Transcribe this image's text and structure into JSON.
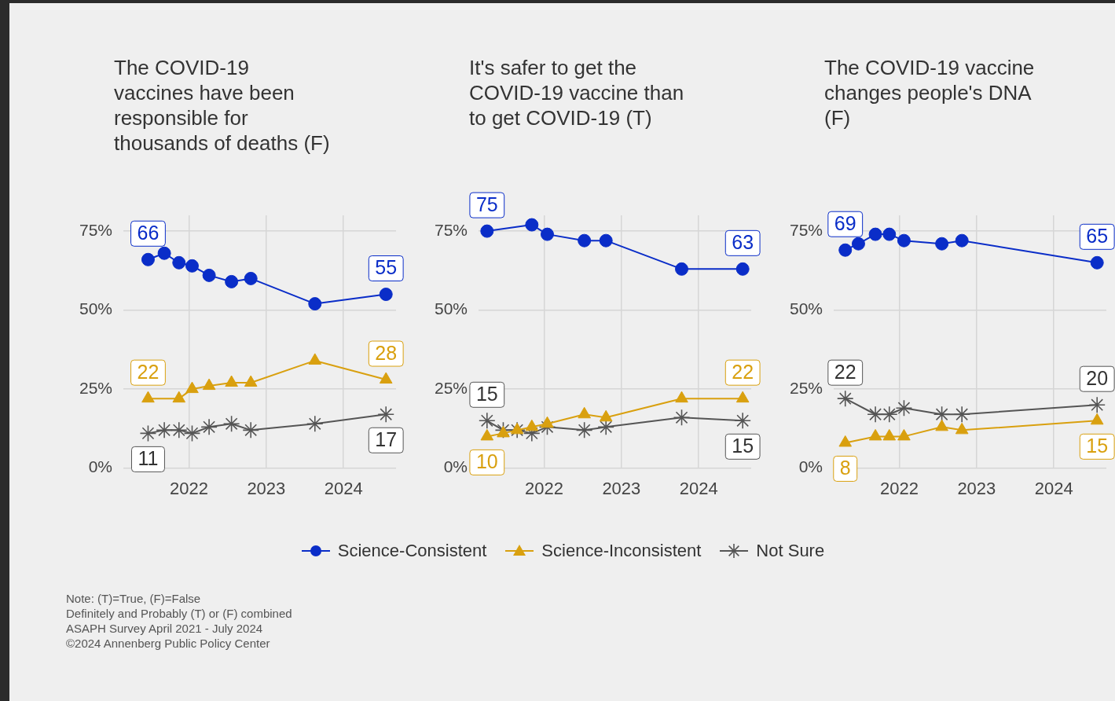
{
  "chart_data": [
    {
      "type": "line",
      "title": "The COVID-19 vaccines have been responsible for thousands of deaths (F)",
      "x": [
        2021.47,
        2021.68,
        2021.87,
        2022.04,
        2022.26,
        2022.55,
        2022.8,
        2023.63,
        2024.55
      ],
      "xlim": [
        2021.15,
        2024.68
      ],
      "xticks": [
        2022,
        2023,
        2024
      ],
      "ylim": [
        0,
        80
      ],
      "yticks": [
        {
          "value": 0,
          "label": "0%"
        },
        {
          "value": 25,
          "label": "25%"
        },
        {
          "value": 50,
          "label": "50%"
        },
        {
          "value": 75,
          "label": "75%"
        }
      ],
      "grid": true,
      "legend": "bottom",
      "series": [
        {
          "name": "Science-Consistent",
          "color": "#0a2dc8",
          "marker": "circle",
          "values": [
            66,
            68,
            65,
            64,
            61,
            59,
            60,
            52,
            55
          ],
          "value_labels": [
            "66",
            null,
            null,
            null,
            null,
            null,
            null,
            null,
            "55"
          ]
        },
        {
          "name": "Science-Inconsistent",
          "color": "#d9a00f",
          "marker": "triangle",
          "values": [
            22,
            null,
            22,
            25,
            26,
            27,
            27,
            34,
            28
          ],
          "value_labels": [
            "22",
            null,
            null,
            null,
            null,
            null,
            null,
            null,
            "28"
          ]
        },
        {
          "name": "Not Sure",
          "color": "#555555",
          "marker": "cross",
          "values": [
            11,
            12,
            12,
            11,
            13,
            14,
            12,
            14,
            17
          ],
          "value_labels": [
            "11",
            null,
            null,
            null,
            null,
            null,
            null,
            null,
            "17"
          ]
        }
      ],
      "annotations": [
        "Note: (T)=True, (F)=False",
        "Definitely and Probably (T) or (F) combined",
        "ASAPH Survey April 2021 - July 2024",
        "©2024 Annenberg Public Policy Center"
      ]
    },
    {
      "type": "line",
      "title": "It's safer to get the COVID-19 vaccine than to get COVID-19 (T)",
      "x": [
        2021.26,
        2021.47,
        2021.65,
        2021.84,
        2022.04,
        2022.52,
        2022.8,
        2023.78,
        2024.57
      ],
      "xlim": [
        2021.15,
        2024.68
      ],
      "xticks": [
        2022,
        2023,
        2024
      ],
      "ylim": [
        0,
        80
      ],
      "yticks": [
        {
          "value": 0,
          "label": "0%"
        },
        {
          "value": 25,
          "label": "25%"
        },
        {
          "value": 50,
          "label": "50%"
        },
        {
          "value": 75,
          "label": "75%"
        }
      ],
      "grid": true,
      "series": [
        {
          "color": "#0a2dc8",
          "marker": "circle",
          "values": [
            75,
            null,
            null,
            77,
            74,
            72,
            72,
            63,
            63
          ],
          "value_labels": [
            "75",
            null,
            null,
            null,
            null,
            null,
            null,
            null,
            "63"
          ]
        },
        {
          "color": "#d9a00f",
          "marker": "triangle",
          "values": [
            10,
            11,
            12,
            13,
            14,
            17,
            16,
            22,
            22
          ],
          "value_labels": [
            "10",
            null,
            null,
            null,
            null,
            null,
            null,
            null,
            "22"
          ]
        },
        {
          "color": "#555555",
          "marker": "cross",
          "values": [
            15,
            12,
            12,
            11,
            13,
            12,
            13,
            16,
            15
          ],
          "value_labels": [
            "15",
            null,
            null,
            null,
            null,
            null,
            null,
            null,
            "15"
          ]
        }
      ]
    },
    {
      "type": "line",
      "title": "The COVID-19 vaccine changes people's DNA (F)",
      "x": [
        2021.3,
        2021.47,
        2021.69,
        2021.87,
        2022.06,
        2022.55,
        2022.81,
        2024.56
      ],
      "xlim": [
        2021.15,
        2024.68
      ],
      "xticks": [
        2022,
        2023,
        2024
      ],
      "ylim": [
        0,
        80
      ],
      "yticks": [
        {
          "value": 0,
          "label": "0%"
        },
        {
          "value": 25,
          "label": "25%"
        },
        {
          "value": 50,
          "label": "50%"
        },
        {
          "value": 75,
          "label": "75%"
        }
      ],
      "grid": true,
      "series": [
        {
          "color": "#0a2dc8",
          "marker": "circle",
          "values": [
            69,
            71,
            74,
            74,
            72,
            71,
            72,
            65
          ],
          "value_labels": [
            "69",
            null,
            null,
            null,
            null,
            null,
            null,
            "65"
          ]
        },
        {
          "color": "#d9a00f",
          "marker": "triangle",
          "values": [
            8,
            null,
            10,
            10,
            10,
            13,
            12,
            15
          ],
          "value_labels": [
            "8",
            null,
            null,
            null,
            null,
            null,
            null,
            "15"
          ]
        },
        {
          "color": "#555555",
          "marker": "cross",
          "values": [
            22,
            null,
            17,
            17,
            19,
            17,
            17,
            20
          ],
          "value_labels": [
            "22",
            null,
            null,
            null,
            null,
            null,
            null,
            "20"
          ]
        }
      ]
    }
  ]
}
